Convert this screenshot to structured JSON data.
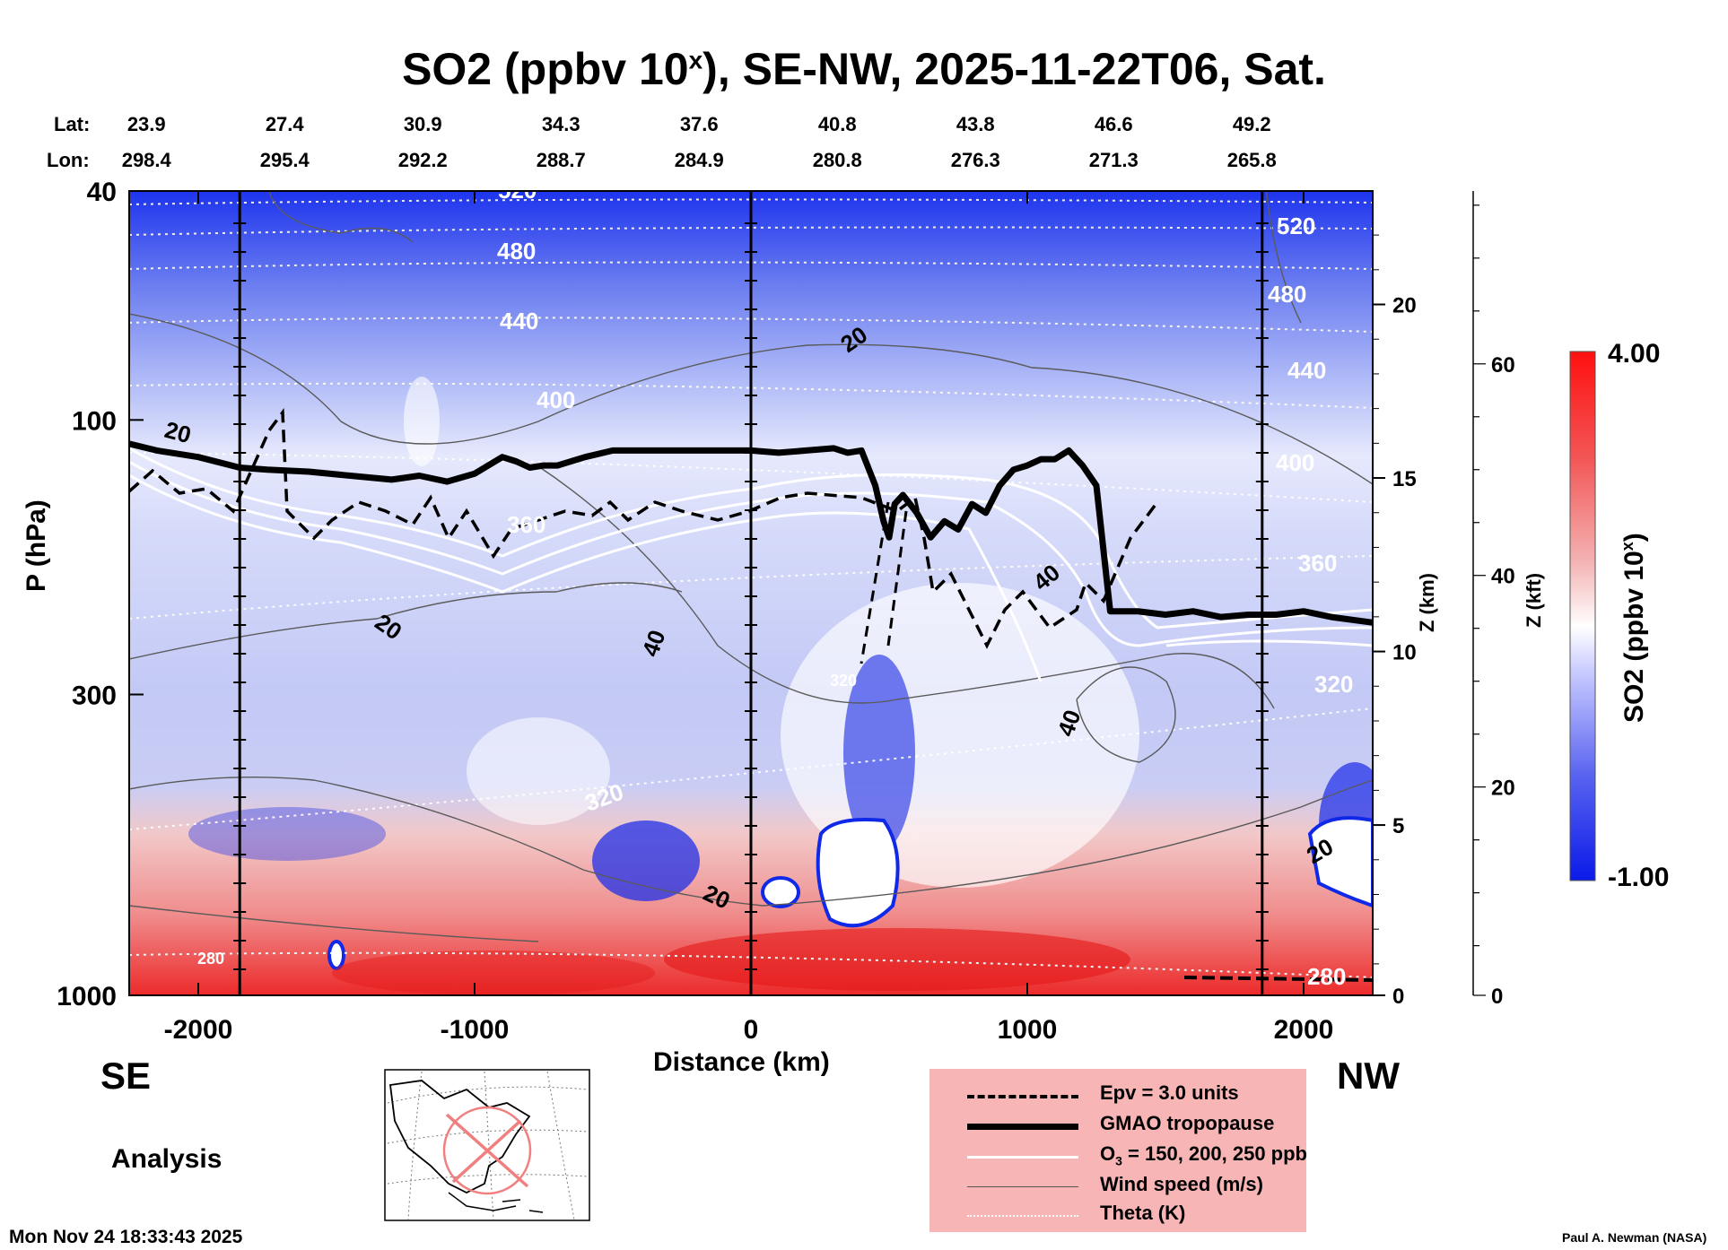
{
  "chart_data": {
    "type": "heatmap",
    "title": "SO2 (ppbv 10",
    "title_sup": "x",
    "title_rest": "), SE-NW, 2025-11-22T06, Sat.",
    "xlabel": "Distance (km)",
    "ylabel": "P (hPa)",
    "z_km_label": "Z (km)",
    "z_kft_label": "Z (kft)",
    "colorbar_label": "SO2 (ppbv 10",
    "colorbar_label_sup": "x",
    "colorbar_label_close": ")",
    "xlim": [
      -2250,
      2250
    ],
    "x_ticks": [
      -2000,
      -1000,
      0,
      1000,
      2000
    ],
    "x_tick_labels": [
      "-2000",
      "-1000",
      "0",
      "1000",
      "2000"
    ],
    "ylim_hpa": [
      1000,
      40
    ],
    "y_ticks_hpa": [
      40,
      100,
      300,
      1000
    ],
    "y_tick_labels": [
      "40",
      "100",
      "300",
      "1000"
    ],
    "z_km_ticks": [
      0,
      5,
      10,
      15,
      20
    ],
    "z_km_tick_labels": [
      "0",
      "5",
      "10",
      "15",
      "20"
    ],
    "z_kft_ticks": [
      0,
      20,
      40,
      60
    ],
    "z_kft_tick_labels": [
      "0",
      "20",
      "40",
      "60"
    ],
    "colorbar_range": [
      -1.0,
      4.0
    ],
    "colorbar_tick_labels": [
      "4.00",
      "-1.00"
    ],
    "section_markers_km": [
      -1850,
      0,
      1850
    ],
    "lat_label": "Lat:",
    "lon_label": "Lon:",
    "lat_values": [
      "23.9",
      "27.4",
      "30.9",
      "34.3",
      "37.6",
      "40.8",
      "43.8",
      "46.6",
      "49.2"
    ],
    "lon_values": [
      "298.4",
      "295.4",
      "292.2",
      "288.7",
      "284.9",
      "280.8",
      "276.3",
      "271.3",
      "265.8"
    ],
    "coord_positions_km": [
      -2220,
      -1720,
      -1220,
      -720,
      -220,
      280,
      780,
      1280,
      1780
    ],
    "tropopause_profile": {
      "x_km": [
        -2250,
        -2150,
        -2000,
        -1850,
        -1750,
        -1600,
        -1450,
        -1300,
        -1200,
        -1100,
        -1000,
        -900,
        -850,
        -800,
        -750,
        -700,
        -600,
        -500,
        -400,
        -300,
        -200,
        -100,
        0,
        100,
        200,
        300,
        350,
        400,
        450,
        480,
        500,
        520,
        550,
        600,
        650,
        700,
        750,
        800,
        850,
        900,
        950,
        1000,
        1050,
        1100,
        1150,
        1200,
        1250,
        1300,
        1400,
        1500,
        1600,
        1700,
        1800,
        1900,
        2000,
        2100,
        2250
      ],
      "p_hpa": [
        110,
        113,
        116,
        121,
        122,
        123,
        125,
        127,
        125,
        128,
        124,
        116,
        118,
        121,
        120,
        120,
        116,
        113,
        113,
        113,
        113,
        113,
        113,
        114,
        113,
        112,
        114,
        113,
        130,
        150,
        160,
        140,
        135,
        145,
        160,
        150,
        155,
        140,
        145,
        130,
        122,
        120,
        117,
        117,
        113,
        120,
        130,
        215,
        215,
        218,
        215,
        220,
        218,
        218,
        215,
        220,
        225
      ]
    },
    "contour_labels": {
      "theta_k": [
        "520",
        "480",
        "440",
        "400",
        "360",
        "320",
        "280",
        "520",
        "480",
        "440",
        "400",
        "360",
        "320",
        "280",
        "320"
      ],
      "wind_ms": [
        "20",
        "20",
        "20",
        "40",
        "40",
        "40",
        "20",
        "20"
      ]
    },
    "legend": [
      {
        "label": "Epv = 3.0 units",
        "style": "dashed"
      },
      {
        "label": "GMAO tropopause",
        "style": "thick"
      },
      {
        "label": "O",
        "label_sub": "3",
        "label_rest": " = 150, 200, 250 ppb",
        "style": "white"
      },
      {
        "label": "Wind speed (m/s)",
        "style": "thin"
      },
      {
        "label": "Theta (K)",
        "style": "dotted"
      }
    ]
  },
  "panel": {
    "direction_left": "SE",
    "direction_right": "NW",
    "mode": "Analysis",
    "timestamp": "Mon Nov 24 18:33:43 2025",
    "credit": "Paul A. Newman (NASA)"
  },
  "colors": {
    "blue": "#0a1ee6",
    "white": "#ffffff",
    "red": "#e60a0a",
    "legend_bg": "#f8b5b5"
  }
}
